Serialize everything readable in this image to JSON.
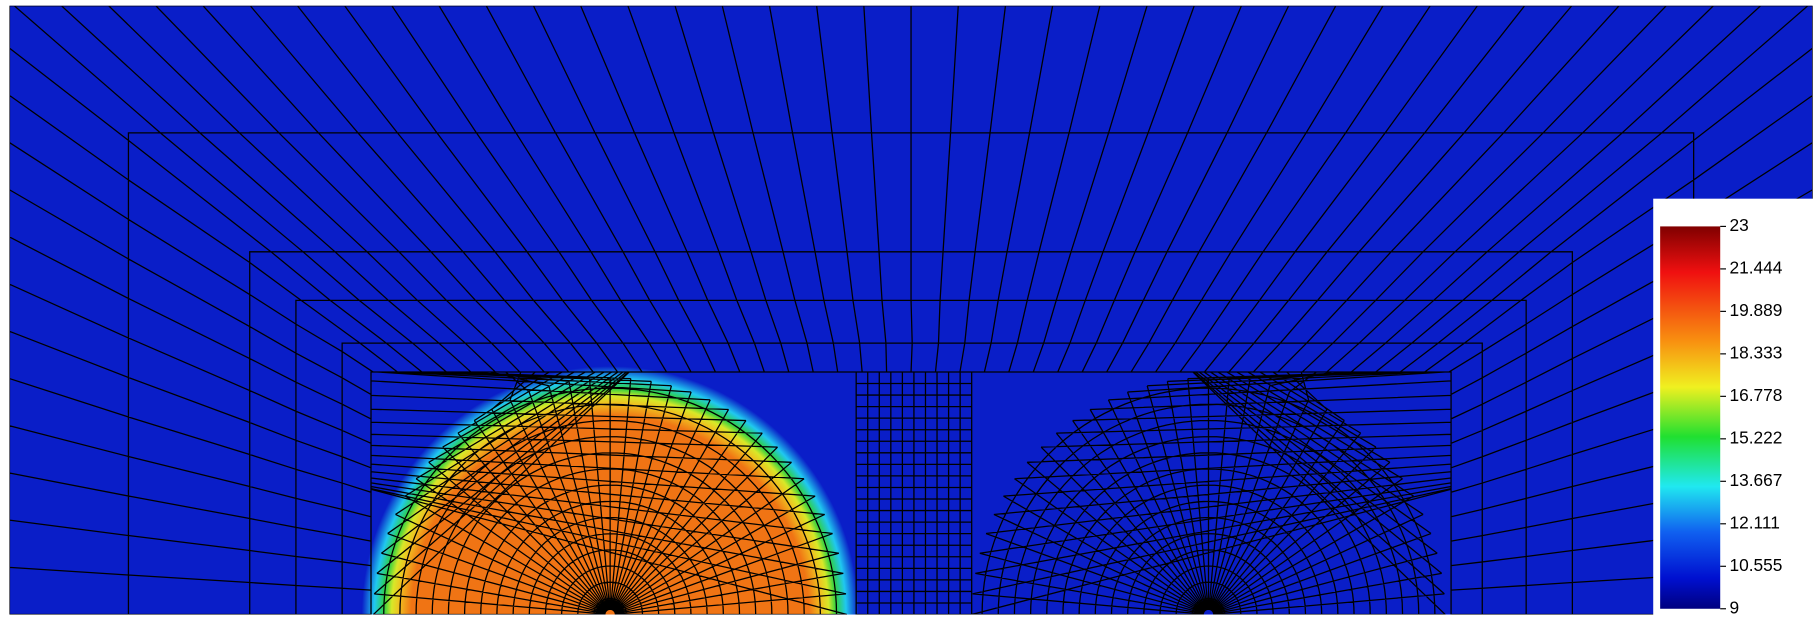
{
  "colorbar": {
    "ticks": [
      23,
      21.444,
      19.889,
      18.333,
      16.778,
      15.222,
      13.667,
      12.111,
      10.555,
      9
    ]
  }
}
